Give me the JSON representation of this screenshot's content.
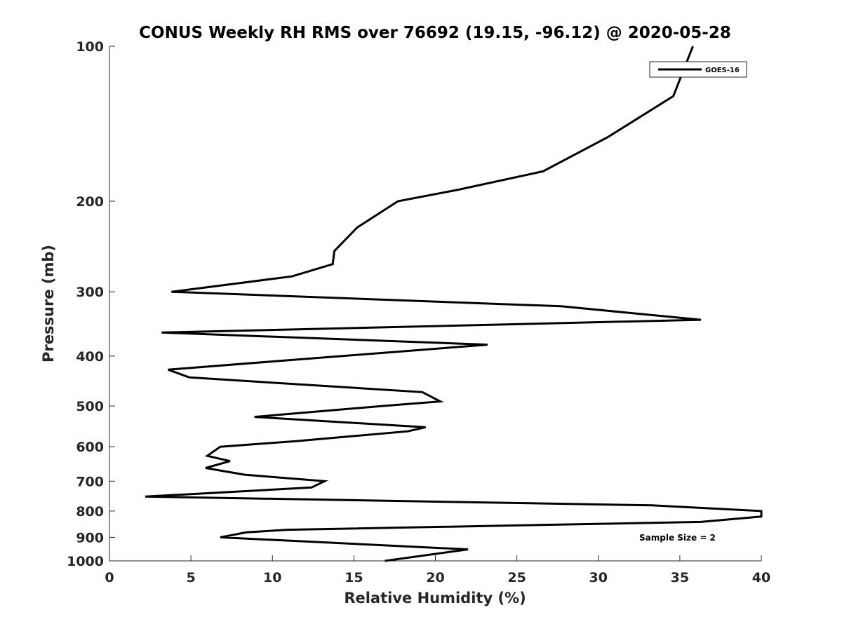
{
  "chart_data": {
    "type": "line",
    "title": "CONUS Weekly RH RMS over 76692 (19.15, -96.12) @ 2020-05-28",
    "xlabel": "Relative Humidity (%)",
    "ylabel": "Pressure (mb)",
    "xlim": [
      0,
      40
    ],
    "ylim": [
      100,
      1000
    ],
    "y_scale": "log",
    "y_reversed": true,
    "grid": false,
    "legend_position": "top-right",
    "x_ticks": [
      "0",
      "5",
      "10",
      "15",
      "20",
      "25",
      "30",
      "35",
      "40"
    ],
    "y_ticks": [
      "100",
      "200",
      "300",
      "400",
      "500",
      "600",
      "700",
      "800",
      "900",
      "1000"
    ],
    "annotation": "Sample Size = 2",
    "series": [
      {
        "name": "GOES-16",
        "color": "#000000",
        "points": [
          [
            35.8,
            100
          ],
          [
            34.6,
            125
          ],
          [
            30.6,
            150
          ],
          [
            26.6,
            175
          ],
          [
            21.4,
            190
          ],
          [
            17.7,
            200
          ],
          [
            15.2,
            225
          ],
          [
            13.8,
            250
          ],
          [
            13.7,
            265
          ],
          [
            11.2,
            280
          ],
          [
            3.8,
            300
          ],
          [
            27.7,
            320
          ],
          [
            36.3,
            340
          ],
          [
            3.2,
            360
          ],
          [
            23.2,
            380
          ],
          [
            3.6,
            425
          ],
          [
            4.9,
            440
          ],
          [
            19.2,
            470
          ],
          [
            20.3,
            490
          ],
          [
            16.8,
            500
          ],
          [
            8.9,
            525
          ],
          [
            19.4,
            550
          ],
          [
            18.3,
            560
          ],
          [
            11.5,
            585
          ],
          [
            6.8,
            600
          ],
          [
            6.0,
            625
          ],
          [
            7.4,
            640
          ],
          [
            5.9,
            660
          ],
          [
            8.3,
            680
          ],
          [
            13.2,
            700
          ],
          [
            12.4,
            720
          ],
          [
            2.2,
            750
          ],
          [
            33.3,
            780
          ],
          [
            40.0,
            800
          ],
          [
            40.0,
            820
          ],
          [
            36.3,
            840
          ],
          [
            10.9,
            870
          ],
          [
            8.4,
            880
          ],
          [
            6.8,
            900
          ],
          [
            22.0,
            950
          ],
          [
            16.9,
            1000
          ]
        ]
      }
    ]
  }
}
